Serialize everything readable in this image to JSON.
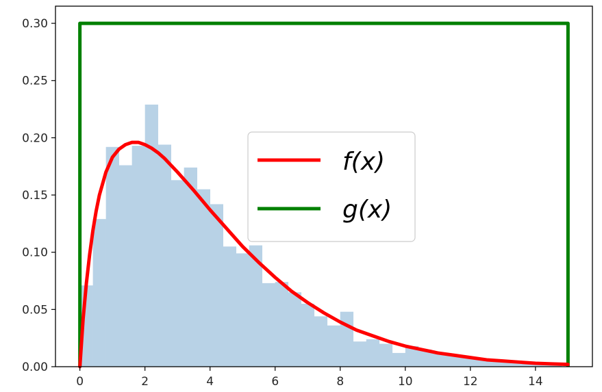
{
  "chart_data": {
    "type": "histogram",
    "xlim": [
      -0.75,
      15.75
    ],
    "ylim": [
      0,
      0.315
    ],
    "x_ticks": [
      0,
      2,
      4,
      6,
      8,
      10,
      12,
      14
    ],
    "y_ticks": [
      0.0,
      0.05,
      0.1,
      0.15,
      0.2,
      0.25,
      0.3
    ],
    "x_tick_labels": [
      "0",
      "2",
      "4",
      "6",
      "8",
      "10",
      "12",
      "14"
    ],
    "y_tick_labels": [
      "0.00",
      "0.05",
      "0.10",
      "0.15",
      "0.20",
      "0.25",
      "0.30"
    ],
    "grid": false,
    "legend_position": "center",
    "legend": [
      {
        "label": "f(x)",
        "color": "#ff0000"
      },
      {
        "label": "g(x)",
        "color": "#008000"
      }
    ],
    "histogram": {
      "color": "#b8d2e6",
      "bins": [
        {
          "x0": 0.0,
          "x1": 0.4,
          "value": 0.071
        },
        {
          "x0": 0.4,
          "x1": 0.8,
          "value": 0.129
        },
        {
          "x0": 0.8,
          "x1": 1.2,
          "value": 0.192
        },
        {
          "x0": 1.2,
          "x1": 1.6,
          "value": 0.176
        },
        {
          "x0": 1.6,
          "x1": 2.0,
          "value": 0.193
        },
        {
          "x0": 2.0,
          "x1": 2.4,
          "value": 0.229
        },
        {
          "x0": 2.4,
          "x1": 2.8,
          "value": 0.194
        },
        {
          "x0": 2.8,
          "x1": 3.2,
          "value": 0.163
        },
        {
          "x0": 3.2,
          "x1": 3.6,
          "value": 0.174
        },
        {
          "x0": 3.6,
          "x1": 4.0,
          "value": 0.155
        },
        {
          "x0": 4.0,
          "x1": 4.4,
          "value": 0.142
        },
        {
          "x0": 4.4,
          "x1": 4.8,
          "value": 0.105
        },
        {
          "x0": 4.8,
          "x1": 5.2,
          "value": 0.099
        },
        {
          "x0": 5.2,
          "x1": 5.6,
          "value": 0.106
        },
        {
          "x0": 5.6,
          "x1": 6.0,
          "value": 0.073
        },
        {
          "x0": 6.0,
          "x1": 6.4,
          "value": 0.074
        },
        {
          "x0": 6.4,
          "x1": 6.8,
          "value": 0.065
        },
        {
          "x0": 6.8,
          "x1": 7.2,
          "value": 0.055
        },
        {
          "x0": 7.2,
          "x1": 7.6,
          "value": 0.044
        },
        {
          "x0": 7.6,
          "x1": 8.0,
          "value": 0.036
        },
        {
          "x0": 8.0,
          "x1": 8.4,
          "value": 0.048
        },
        {
          "x0": 8.4,
          "x1": 8.8,
          "value": 0.022
        },
        {
          "x0": 8.8,
          "x1": 9.2,
          "value": 0.024
        },
        {
          "x0": 9.2,
          "x1": 9.6,
          "value": 0.02
        },
        {
          "x0": 9.6,
          "x1": 10.0,
          "value": 0.012
        },
        {
          "x0": 10.0,
          "x1": 10.4,
          "value": 0.018
        },
        {
          "x0": 10.4,
          "x1": 10.8,
          "value": 0.015
        },
        {
          "x0": 10.8,
          "x1": 11.2,
          "value": 0.012
        },
        {
          "x0": 11.2,
          "x1": 11.6,
          "value": 0.01
        },
        {
          "x0": 11.6,
          "x1": 12.0,
          "value": 0.009
        },
        {
          "x0": 12.0,
          "x1": 12.4,
          "value": 0.007
        },
        {
          "x0": 12.4,
          "x1": 12.8,
          "value": 0.006
        },
        {
          "x0": 12.8,
          "x1": 13.2,
          "value": 0.005
        },
        {
          "x0": 13.2,
          "x1": 13.6,
          "value": 0.004
        },
        {
          "x0": 13.6,
          "x1": 14.0,
          "value": 0.003
        },
        {
          "x0": 14.0,
          "x1": 14.4,
          "value": 0.003
        },
        {
          "x0": 14.4,
          "x1": 14.8,
          "value": 0.002
        }
      ]
    },
    "series": [
      {
        "name": "f(x)",
        "color": "#ff0000",
        "x": [
          0,
          0.05,
          0.1,
          0.2,
          0.3,
          0.4,
          0.5,
          0.6,
          0.8,
          1.0,
          1.2,
          1.4,
          1.6,
          1.8,
          2.0,
          2.2,
          2.4,
          2.6,
          2.8,
          3.0,
          3.5,
          4.0,
          4.5,
          5.0,
          5.5,
          6.0,
          6.5,
          7.0,
          7.5,
          8.0,
          8.5,
          9.0,
          9.5,
          10.0,
          10.5,
          11.0,
          11.5,
          12.0,
          12.5,
          13.0,
          13.5,
          14.0,
          14.5,
          15.0
        ],
        "y": [
          0,
          0.021,
          0.042,
          0.073,
          0.098,
          0.119,
          0.136,
          0.15,
          0.17,
          0.183,
          0.19,
          0.194,
          0.196,
          0.196,
          0.194,
          0.191,
          0.187,
          0.182,
          0.176,
          0.17,
          0.154,
          0.137,
          0.121,
          0.105,
          0.091,
          0.078,
          0.066,
          0.056,
          0.047,
          0.039,
          0.032,
          0.027,
          0.022,
          0.018,
          0.015,
          0.012,
          0.01,
          0.008,
          0.006,
          0.005,
          0.004,
          0.003,
          0.0025,
          0.002
        ]
      },
      {
        "name": "g(x)",
        "color": "#008000",
        "x": [
          0,
          0,
          15,
          15
        ],
        "y": [
          0,
          0.3,
          0.3,
          0
        ]
      }
    ]
  }
}
